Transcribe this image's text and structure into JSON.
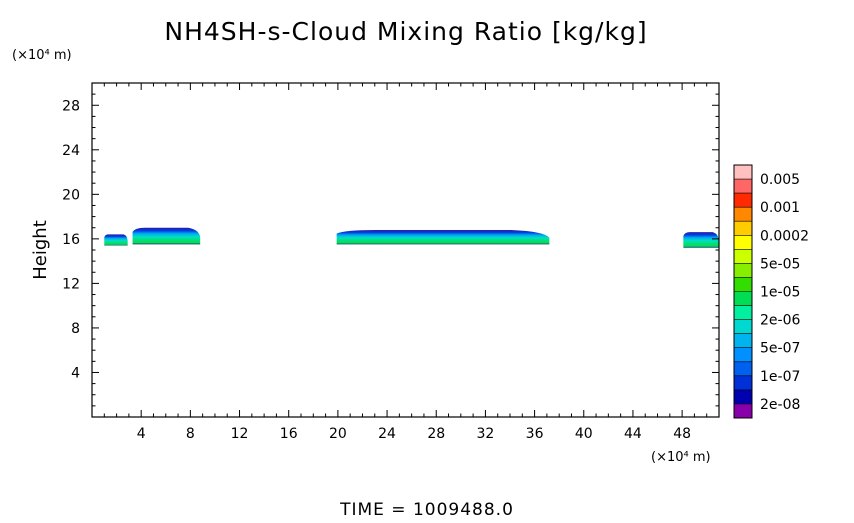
{
  "chart_data": {
    "type": "heatmap",
    "title": "NH4SH-s-Cloud Mixing Ratio [kg/kg]",
    "ylabel": "Height",
    "xlabel": "",
    "x_unit": "(×10⁴ m)",
    "y_unit": "(×10⁴ m)",
    "xlim": [
      0,
      51
    ],
    "ylim": [
      0,
      30
    ],
    "x_ticks": [
      4,
      8,
      12,
      16,
      20,
      24,
      28,
      32,
      36,
      40,
      44,
      48
    ],
    "y_ticks": [
      4,
      8,
      12,
      16,
      20,
      24,
      28
    ],
    "colorbar": {
      "labels": [
        "0.005",
        "0.001",
        "0.0002",
        "5e-05",
        "1e-05",
        "2e-06",
        "5e-07",
        "1e-07",
        "2e-08"
      ],
      "colors": [
        "#ffc0c0",
        "#ff6666",
        "#ff2a00",
        "#ff8800",
        "#ffcc00",
        "#ffff00",
        "#ccff00",
        "#88ee00",
        "#33dd00",
        "#00dd55",
        "#00f0a0",
        "#00d8d0",
        "#00b4f0",
        "#0090ff",
        "#0060f0",
        "#0030d8",
        "#0000b0",
        "#8800aa"
      ]
    },
    "cloud_layers": [
      {
        "x_start": 1.0,
        "x_end": 2.9,
        "y_base": 15.4,
        "y_top": 16.4
      },
      {
        "x_start": 3.3,
        "x_end": 8.8,
        "y_base": 15.5,
        "y_top": 17.0
      },
      {
        "x_start": 19.9,
        "x_end": 37.2,
        "y_base": 15.5,
        "y_top": 16.8
      },
      {
        "x_start": 48.1,
        "x_end": 51.0,
        "y_base": 15.2,
        "y_top": 16.6
      }
    ],
    "time_label": "TIME = 1009488.0"
  }
}
